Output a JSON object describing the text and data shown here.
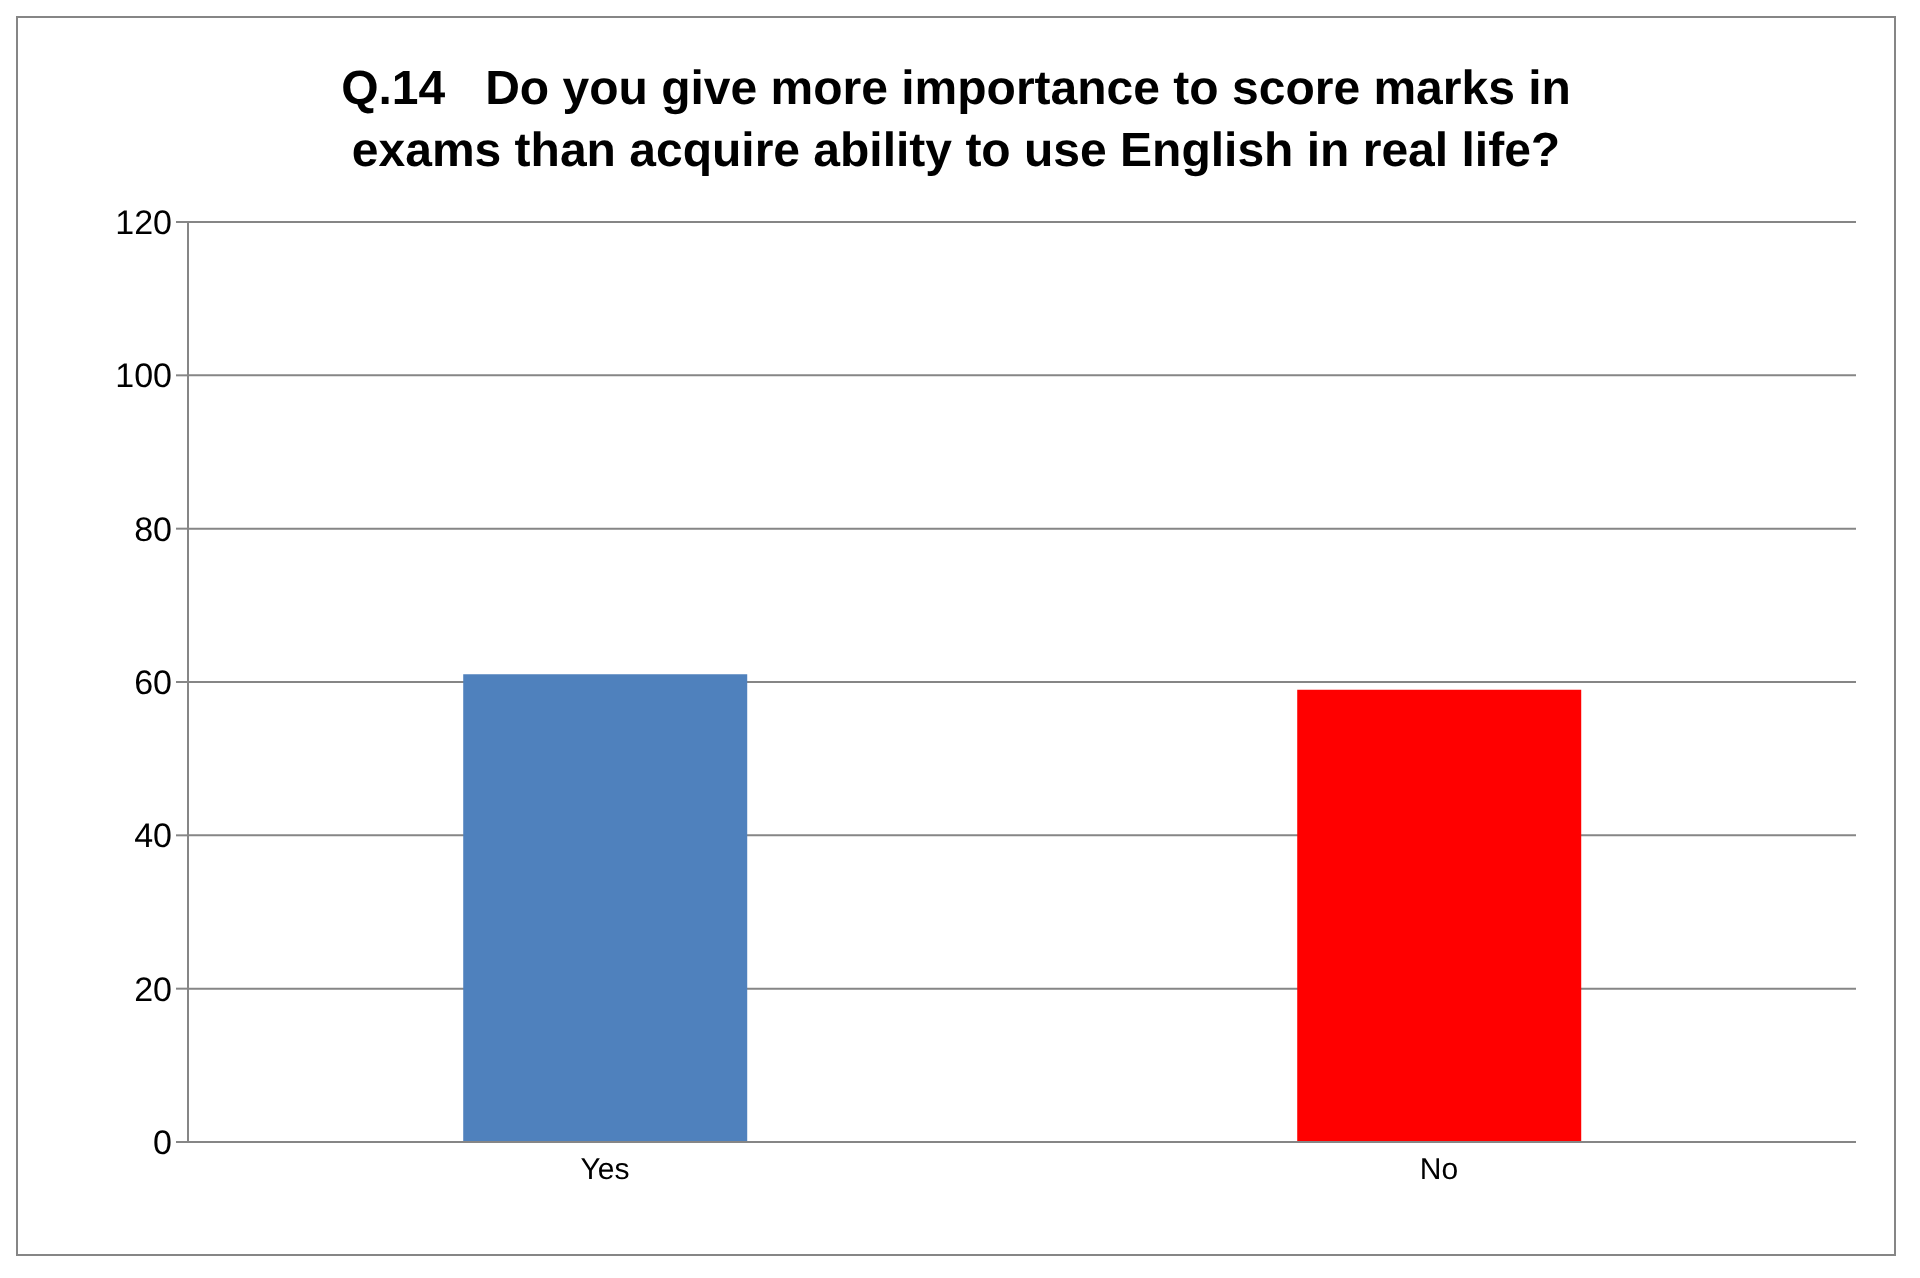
{
  "chart_data": {
    "type": "bar",
    "title": "Q.14   Do you give more importance to score marks in exams than acquire ability to use English in real life?",
    "categories": [
      "Yes",
      "No"
    ],
    "values": [
      61,
      59
    ],
    "colors": [
      "#4f81bd",
      "#ff0000"
    ],
    "ylim": [
      0,
      120
    ],
    "yticks": [
      0,
      20,
      40,
      60,
      80,
      100,
      120
    ],
    "grid": "y"
  }
}
